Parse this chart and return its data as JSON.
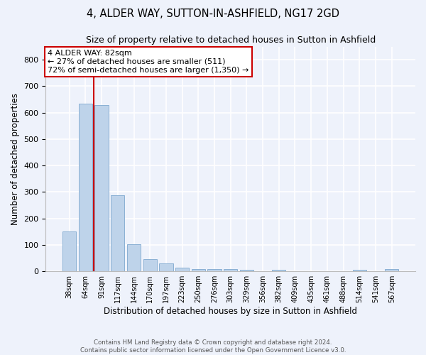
{
  "title1": "4, ALDER WAY, SUTTON-IN-ASHFIELD, NG17 2GD",
  "title2": "Size of property relative to detached houses in Sutton in Ashfield",
  "xlabel": "Distribution of detached houses by size in Sutton in Ashfield",
  "ylabel": "Number of detached properties",
  "categories": [
    "38sqm",
    "64sqm",
    "91sqm",
    "117sqm",
    "144sqm",
    "170sqm",
    "197sqm",
    "223sqm",
    "250sqm",
    "276sqm",
    "303sqm",
    "329sqm",
    "356sqm",
    "382sqm",
    "409sqm",
    "435sqm",
    "461sqm",
    "488sqm",
    "514sqm",
    "541sqm",
    "567sqm"
  ],
  "values": [
    150,
    635,
    630,
    288,
    103,
    47,
    31,
    13,
    8,
    8,
    8,
    5,
    0,
    5,
    0,
    0,
    0,
    0,
    5,
    0,
    8
  ],
  "bar_color": "#bed3ea",
  "bar_edge_color": "#8ab0d4",
  "annotation_text_line1": "4 ALDER WAY: 82sqm",
  "annotation_text_line2": "← 27% of detached houses are smaller (511)",
  "annotation_text_line3": "72% of semi-detached houses are larger (1,350) →",
  "annotation_box_color": "#ffffff",
  "annotation_box_edge": "#cc0000",
  "vline_color": "#cc0000",
  "vline_x_bar": 2,
  "bg_color": "#eef2fb",
  "grid_color": "#ffffff",
  "footer1": "Contains HM Land Registry data © Crown copyright and database right 2024.",
  "footer2": "Contains public sector information licensed under the Open Government Licence v3.0.",
  "ylim": [
    0,
    850
  ],
  "title1_fontsize": 10.5,
  "title2_fontsize": 9,
  "axis_label_fontsize": 8.5,
  "tick_fontsize": 8,
  "ann_fontsize": 8
}
